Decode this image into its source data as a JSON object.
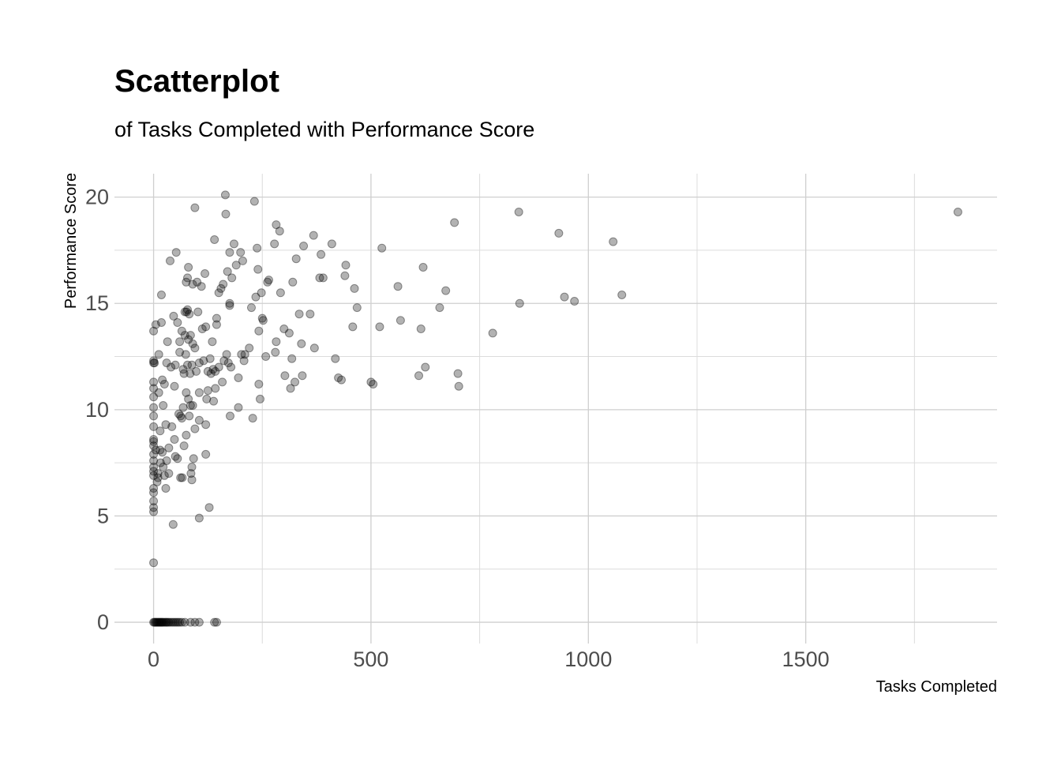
{
  "chart_data": {
    "type": "scatter",
    "title": "Scatterplot",
    "subtitle": "of Tasks Completed with Performance Score",
    "xlabel": "Tasks Completed",
    "ylabel": "Performance Score",
    "xlim": [
      -90,
      1940
    ],
    "ylim": [
      -1.0,
      21.1
    ],
    "x_ticks": [
      0,
      500,
      1000,
      1500
    ],
    "x_tick_labels": [
      "0",
      "500",
      "1000",
      "1500"
    ],
    "x_minor_ticks": [
      250,
      750,
      1250,
      1750
    ],
    "y_ticks": [
      0,
      5,
      10,
      15,
      20
    ],
    "y_tick_labels": [
      "0",
      "5",
      "10",
      "15",
      "20"
    ],
    "y_minor_ticks": [
      2.5,
      7.5,
      12.5,
      17.5
    ],
    "grid": true,
    "legend": "none",
    "point_color": "#000000",
    "point_opacity": 0.3,
    "series": [
      {
        "points": [
          [
            0,
            0
          ],
          [
            2,
            0
          ],
          [
            4,
            0
          ],
          [
            6,
            0
          ],
          [
            8,
            0
          ],
          [
            10,
            0
          ],
          [
            12,
            0
          ],
          [
            14,
            0
          ],
          [
            16,
            0
          ],
          [
            18,
            0
          ],
          [
            20,
            0
          ],
          [
            22,
            0
          ],
          [
            25,
            0
          ],
          [
            28,
            0
          ],
          [
            30,
            0
          ],
          [
            33,
            0
          ],
          [
            36,
            0
          ],
          [
            40,
            0
          ],
          [
            44,
            0
          ],
          [
            48,
            0
          ],
          [
            52,
            0
          ],
          [
            56,
            0
          ],
          [
            60,
            0
          ],
          [
            65,
            0
          ],
          [
            72,
            0
          ],
          [
            85,
            0
          ],
          [
            95,
            0
          ],
          [
            105,
            0
          ],
          [
            140,
            0
          ],
          [
            145,
            0
          ],
          [
            0,
            2.8
          ],
          [
            0,
            5.2
          ],
          [
            0,
            5.4
          ],
          [
            0,
            5.7
          ],
          [
            0,
            6.1
          ],
          [
            0,
            6.3
          ],
          [
            0,
            6.9
          ],
          [
            0,
            7.1
          ],
          [
            0,
            7.3
          ],
          [
            0,
            7.6
          ],
          [
            0,
            7.9
          ],
          [
            0,
            8.3
          ],
          [
            0,
            8.5
          ],
          [
            0,
            8.6
          ],
          [
            0,
            9.2
          ],
          [
            0,
            9.7
          ],
          [
            0,
            10.1
          ],
          [
            0,
            10.6
          ],
          [
            0,
            11.0
          ],
          [
            0,
            11.3
          ],
          [
            0,
            12.2
          ],
          [
            0,
            12.3
          ],
          [
            0,
            13.7
          ],
          [
            2,
            12.2
          ],
          [
            5,
            14.0
          ],
          [
            5,
            8.1
          ],
          [
            8,
            6.6
          ],
          [
            10,
            7.0
          ],
          [
            10,
            6.8
          ],
          [
            12,
            12.6
          ],
          [
            12,
            10.8
          ],
          [
            15,
            9.0
          ],
          [
            15,
            8.1
          ],
          [
            16,
            7.5
          ],
          [
            18,
            15.4
          ],
          [
            18,
            14.1
          ],
          [
            20,
            11.4
          ],
          [
            20,
            8.0
          ],
          [
            22,
            7.3
          ],
          [
            22,
            10.2
          ],
          [
            25,
            6.9
          ],
          [
            25,
            11.2
          ],
          [
            28,
            6.3
          ],
          [
            28,
            9.3
          ],
          [
            30,
            7.6
          ],
          [
            30,
            12.2
          ],
          [
            32,
            13.2
          ],
          [
            35,
            8.2
          ],
          [
            35,
            7.0
          ],
          [
            38,
            17.0
          ],
          [
            40,
            12.0
          ],
          [
            42,
            9.2
          ],
          [
            45,
            4.6
          ],
          [
            46,
            14.4
          ],
          [
            48,
            11.1
          ],
          [
            48,
            8.6
          ],
          [
            50,
            12.1
          ],
          [
            50,
            7.8
          ],
          [
            52,
            17.4
          ],
          [
            55,
            14.1
          ],
          [
            55,
            7.7
          ],
          [
            58,
            9.8
          ],
          [
            60,
            13.2
          ],
          [
            60,
            12.7
          ],
          [
            62,
            9.7
          ],
          [
            62,
            6.8
          ],
          [
            65,
            13.7
          ],
          [
            65,
            9.6
          ],
          [
            66,
            6.8
          ],
          [
            68,
            11.9
          ],
          [
            68,
            10.1
          ],
          [
            70,
            11.7
          ],
          [
            70,
            8.3
          ],
          [
            72,
            14.6
          ],
          [
            72,
            13.5
          ],
          [
            74,
            12.6
          ],
          [
            75,
            16.0
          ],
          [
            75,
            10.8
          ],
          [
            75,
            8.8
          ],
          [
            76,
            14.6
          ],
          [
            78,
            14.7
          ],
          [
            78,
            16.2
          ],
          [
            78,
            12.1
          ],
          [
            80,
            16.7
          ],
          [
            80,
            13.3
          ],
          [
            80,
            10.5
          ],
          [
            82,
            14.5
          ],
          [
            82,
            9.7
          ],
          [
            84,
            11.7
          ],
          [
            85,
            13.5
          ],
          [
            85,
            10.2
          ],
          [
            86,
            7.0
          ],
          [
            88,
            12.1
          ],
          [
            88,
            7.3
          ],
          [
            88,
            6.7
          ],
          [
            90,
            15.9
          ],
          [
            90,
            13.1
          ],
          [
            90,
            10.2
          ],
          [
            92,
            7.7
          ],
          [
            95,
            19.5
          ],
          [
            95,
            12.9
          ],
          [
            95,
            9.1
          ],
          [
            98,
            11.8
          ],
          [
            100,
            16.0
          ],
          [
            102,
            14.6
          ],
          [
            105,
            12.2
          ],
          [
            105,
            10.8
          ],
          [
            105,
            9.5
          ],
          [
            105,
            4.9
          ],
          [
            110,
            15.8
          ],
          [
            112,
            13.8
          ],
          [
            115,
            12.3
          ],
          [
            118,
            16.4
          ],
          [
            120,
            13.9
          ],
          [
            120,
            9.3
          ],
          [
            120,
            7.9
          ],
          [
            122,
            10.5
          ],
          [
            125,
            11.8
          ],
          [
            125,
            10.9
          ],
          [
            128,
            5.4
          ],
          [
            130,
            12.4
          ],
          [
            132,
            11.7
          ],
          [
            135,
            13.2
          ],
          [
            137,
            11.9
          ],
          [
            138,
            10.4
          ],
          [
            140,
            18.0
          ],
          [
            142,
            11.8
          ],
          [
            142,
            11.0
          ],
          [
            145,
            14.3
          ],
          [
            145,
            14.0
          ],
          [
            150,
            15.5
          ],
          [
            150,
            12.0
          ],
          [
            155,
            15.7
          ],
          [
            158,
            11.3
          ],
          [
            160,
            15.9
          ],
          [
            162,
            12.3
          ],
          [
            165,
            20.1
          ],
          [
            166,
            19.2
          ],
          [
            168,
            12.6
          ],
          [
            170,
            16.5
          ],
          [
            172,
            12.2
          ],
          [
            175,
            17.4
          ],
          [
            175,
            15.0
          ],
          [
            175,
            14.9
          ],
          [
            176,
            9.7
          ],
          [
            178,
            12.0
          ],
          [
            180,
            16.2
          ],
          [
            185,
            17.8
          ],
          [
            190,
            16.8
          ],
          [
            195,
            11.5
          ],
          [
            195,
            10.1
          ],
          [
            200,
            17.4
          ],
          [
            202,
            12.6
          ],
          [
            205,
            17.0
          ],
          [
            208,
            12.3
          ],
          [
            210,
            12.6
          ],
          [
            220,
            12.9
          ],
          [
            225,
            14.8
          ],
          [
            228,
            9.6
          ],
          [
            232,
            19.8
          ],
          [
            235,
            15.3
          ],
          [
            238,
            17.6
          ],
          [
            240,
            16.6
          ],
          [
            242,
            13.7
          ],
          [
            242,
            11.2
          ],
          [
            245,
            10.5
          ],
          [
            248,
            15.5
          ],
          [
            250,
            14.3
          ],
          [
            252,
            14.2
          ],
          [
            258,
            12.5
          ],
          [
            262,
            16.0
          ],
          [
            265,
            16.1
          ],
          [
            278,
            17.8
          ],
          [
            280,
            12.7
          ],
          [
            282,
            13.2
          ],
          [
            282,
            18.7
          ],
          [
            290,
            18.4
          ],
          [
            292,
            15.5
          ],
          [
            300,
            13.8
          ],
          [
            302,
            11.6
          ],
          [
            312,
            13.6
          ],
          [
            315,
            11.0
          ],
          [
            318,
            12.4
          ],
          [
            320,
            16.0
          ],
          [
            325,
            11.3
          ],
          [
            328,
            17.1
          ],
          [
            335,
            14.5
          ],
          [
            340,
            13.1
          ],
          [
            342,
            11.6
          ],
          [
            345,
            17.7
          ],
          [
            360,
            14.5
          ],
          [
            368,
            18.2
          ],
          [
            370,
            12.9
          ],
          [
            382,
            16.2
          ],
          [
            385,
            17.3
          ],
          [
            390,
            16.2
          ],
          [
            410,
            17.8
          ],
          [
            418,
            12.4
          ],
          [
            425,
            11.5
          ],
          [
            432,
            11.4
          ],
          [
            440,
            16.3
          ],
          [
            442,
            16.8
          ],
          [
            458,
            13.9
          ],
          [
            462,
            15.7
          ],
          [
            468,
            14.8
          ],
          [
            500,
            11.3
          ],
          [
            505,
            11.2
          ],
          [
            520,
            13.9
          ],
          [
            525,
            17.6
          ],
          [
            562,
            15.8
          ],
          [
            568,
            14.2
          ],
          [
            610,
            11.6
          ],
          [
            615,
            13.8
          ],
          [
            620,
            16.7
          ],
          [
            625,
            12.0
          ],
          [
            658,
            14.8
          ],
          [
            672,
            15.6
          ],
          [
            692,
            18.8
          ],
          [
            700,
            11.7
          ],
          [
            702,
            11.1
          ],
          [
            780,
            13.6
          ],
          [
            840,
            19.3
          ],
          [
            842,
            15.0
          ],
          [
            932,
            18.3
          ],
          [
            945,
            15.3
          ],
          [
            968,
            15.1
          ],
          [
            1057,
            17.9
          ],
          [
            1077,
            15.4
          ],
          [
            1850,
            19.3
          ]
        ]
      }
    ]
  }
}
